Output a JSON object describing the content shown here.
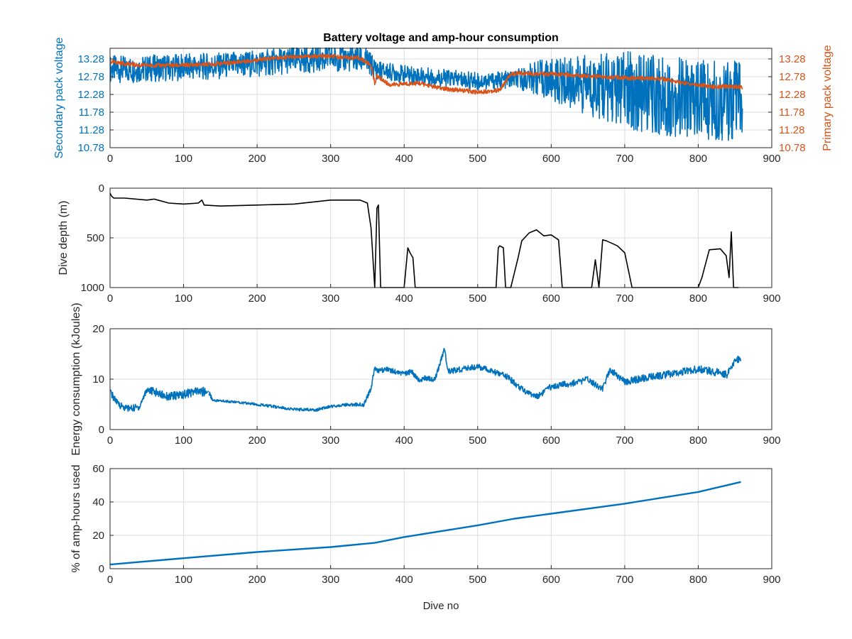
{
  "colors": {
    "secondary": "#0072BD",
    "primary": "#D95319",
    "depth": "#000000",
    "energy": "#0072BD",
    "amphours": "#0072BD",
    "grid": "#dcdcdc",
    "axis": "#262626"
  },
  "chart_data": [
    {
      "type": "line",
      "title": "Battery voltage and amp-hour consumption",
      "xlabel": "",
      "ylabel": "Secondary pack voltage",
      "y2label": "Primary pack voltage",
      "xlim": [
        0,
        900
      ],
      "ylim": [
        10.78,
        13.58
      ],
      "y2lim": [
        10.78,
        13.58
      ],
      "xticks": [
        0,
        100,
        200,
        300,
        400,
        500,
        600,
        700,
        800,
        900
      ],
      "yticks": [
        "10.78",
        "11.28",
        "11.78",
        "12.28",
        "12.78",
        "13.28"
      ],
      "y2ticks": [
        "10.78",
        "11.28",
        "11.78",
        "12.28",
        "12.78",
        "13.28"
      ],
      "grid": true,
      "series": [
        {
          "axis": "left",
          "noise": [
            [
              0,
              0.38
            ],
            [
              350,
              0.38
            ],
            [
              370,
              0.25
            ],
            [
              550,
              0.25
            ],
            [
              590,
              0.55
            ],
            [
              700,
              1.1
            ],
            [
              860,
              1.15
            ]
          ],
          "x": [
            0,
            30,
            60,
            100,
            150,
            200,
            250,
            300,
            340,
            350,
            360,
            370,
            400,
            450,
            500,
            550,
            580,
            600,
            650,
            700,
            750,
            800,
            850,
            860
          ],
          "y": [
            13.0,
            12.98,
            13.02,
            13.05,
            13.08,
            13.15,
            13.25,
            13.3,
            13.28,
            13.2,
            13.0,
            12.95,
            12.85,
            12.75,
            12.65,
            12.7,
            12.75,
            12.68,
            12.55,
            12.4,
            12.25,
            12.15,
            12.1,
            12.0
          ]
        },
        {
          "axis": "right",
          "noise": [
            [
              0,
              0.06
            ],
            [
              860,
              0.06
            ]
          ],
          "x": [
            0,
            20,
            40,
            60,
            100,
            150,
            200,
            250,
            300,
            340,
            355,
            360,
            363,
            380,
            420,
            450,
            500,
            530,
            545,
            560,
            600,
            650,
            700,
            750,
            780,
            800,
            820,
            850,
            860
          ],
          "y": [
            13.2,
            13.15,
            13.1,
            13.1,
            13.1,
            13.15,
            13.25,
            13.35,
            13.35,
            13.3,
            13.1,
            12.6,
            12.8,
            12.55,
            12.6,
            12.45,
            12.35,
            12.4,
            12.85,
            12.88,
            12.85,
            12.8,
            12.75,
            12.72,
            12.6,
            12.55,
            12.5,
            12.5,
            12.48
          ]
        }
      ]
    },
    {
      "type": "line",
      "title": "",
      "xlabel": "",
      "ylabel": "Dive depth (m)",
      "xlim": [
        0,
        900
      ],
      "ylim": [
        1000,
        0
      ],
      "xticks": [
        0,
        100,
        200,
        300,
        400,
        500,
        600,
        700,
        800,
        900
      ],
      "yticks": [
        "0",
        "500",
        "1000"
      ],
      "grid": true,
      "series": [
        {
          "x": [
            0,
            2,
            5,
            20,
            50,
            60,
            65,
            80,
            100,
            120,
            125,
            128,
            150,
            200,
            250,
            300,
            340,
            350,
            355,
            360,
            363,
            365,
            368,
            370,
            372,
            375,
            380,
            400,
            405,
            408,
            412,
            415,
            420,
            430,
            500,
            520,
            525,
            528,
            530,
            535,
            538,
            545,
            555,
            560,
            570,
            580,
            590,
            600,
            610,
            615,
            620,
            625,
            650,
            655,
            660,
            665,
            670,
            675,
            690,
            700,
            710,
            715,
            720,
            730,
            780,
            800,
            805,
            815,
            830,
            838,
            842,
            845,
            848,
            850,
            855
          ],
          "y": [
            50,
            80,
            100,
            100,
            120,
            110,
            120,
            150,
            160,
            150,
            120,
            170,
            180,
            170,
            160,
            120,
            120,
            150,
            400,
            1000,
            200,
            170,
            1000,
            1000,
            1000,
            1000,
            1000,
            1000,
            600,
            650,
            700,
            1000,
            1000,
            1000,
            1000,
            1000,
            1000,
            600,
            580,
            600,
            1000,
            1000,
            700,
            530,
            450,
            420,
            480,
            470,
            520,
            1000,
            1000,
            1000,
            1000,
            1000,
            720,
            1000,
            520,
            530,
            580,
            650,
            1000,
            1000,
            1000,
            1000,
            1000,
            1000,
            900,
            620,
            610,
            680,
            900,
            440,
            1000,
            1000,
            1000
          ]
        }
      ]
    },
    {
      "type": "line",
      "title": "",
      "xlabel": "",
      "ylabel": "Energy consumption (kJoules)",
      "xlim": [
        0,
        900
      ],
      "ylim": [
        0,
        20
      ],
      "xticks": [
        0,
        100,
        200,
        300,
        400,
        500,
        600,
        700,
        800,
        900
      ],
      "yticks": [
        "0",
        "10",
        "20"
      ],
      "grid": true,
      "series": [
        {
          "noise": [
            [
              0,
              0.7
            ],
            [
              130,
              0.9
            ],
            [
              140,
              0.25
            ],
            [
              330,
              0.3
            ],
            [
              350,
              0.5
            ],
            [
              860,
              0.8
            ]
          ],
          "gaps_after": [
            134,
            442
          ],
          "x": [
            0,
            10,
            20,
            30,
            40,
            50,
            60,
            80,
            100,
            115,
            134,
            140,
            160,
            200,
            250,
            280,
            300,
            320,
            345,
            355,
            360,
            365,
            375,
            400,
            410,
            420,
            430,
            442,
            455,
            460,
            500,
            520,
            540,
            560,
            580,
            590,
            600,
            640,
            650,
            670,
            680,
            700,
            740,
            780,
            800,
            820,
            840,
            850,
            858
          ],
          "y": [
            7.5,
            5.2,
            4.3,
            4.2,
            4.5,
            8.0,
            7.5,
            6.5,
            7.0,
            7.5,
            7.5,
            5.8,
            5.6,
            5.0,
            4.0,
            3.9,
            4.6,
            4.9,
            5.0,
            8.0,
            12.5,
            11.5,
            12.0,
            11.0,
            11.5,
            9.8,
            10.2,
            10.0,
            16.0,
            11.5,
            12.5,
            11.5,
            10.5,
            8.0,
            6.5,
            7.5,
            8.5,
            9.5,
            10.0,
            8.0,
            12.0,
            9.5,
            10.5,
            11.5,
            12.0,
            11.5,
            11.0,
            13.5,
            14.5
          ]
        }
      ]
    },
    {
      "type": "line",
      "title": "",
      "xlabel": "Dive no",
      "ylabel": "% of amp-hours used",
      "xlim": [
        0,
        900
      ],
      "ylim": [
        0,
        60
      ],
      "xticks": [
        0,
        100,
        200,
        300,
        400,
        500,
        600,
        700,
        800,
        900
      ],
      "yticks": [
        "0",
        "20",
        "40",
        "60"
      ],
      "grid": true,
      "series": [
        {
          "x": [
            0,
            100,
            200,
            300,
            360,
            400,
            500,
            550,
            600,
            700,
            800,
            858
          ],
          "y": [
            2.5,
            6.3,
            10.0,
            13.0,
            15.5,
            19.0,
            26.0,
            30.0,
            33.0,
            39.0,
            46.0,
            52.0
          ]
        }
      ]
    }
  ]
}
